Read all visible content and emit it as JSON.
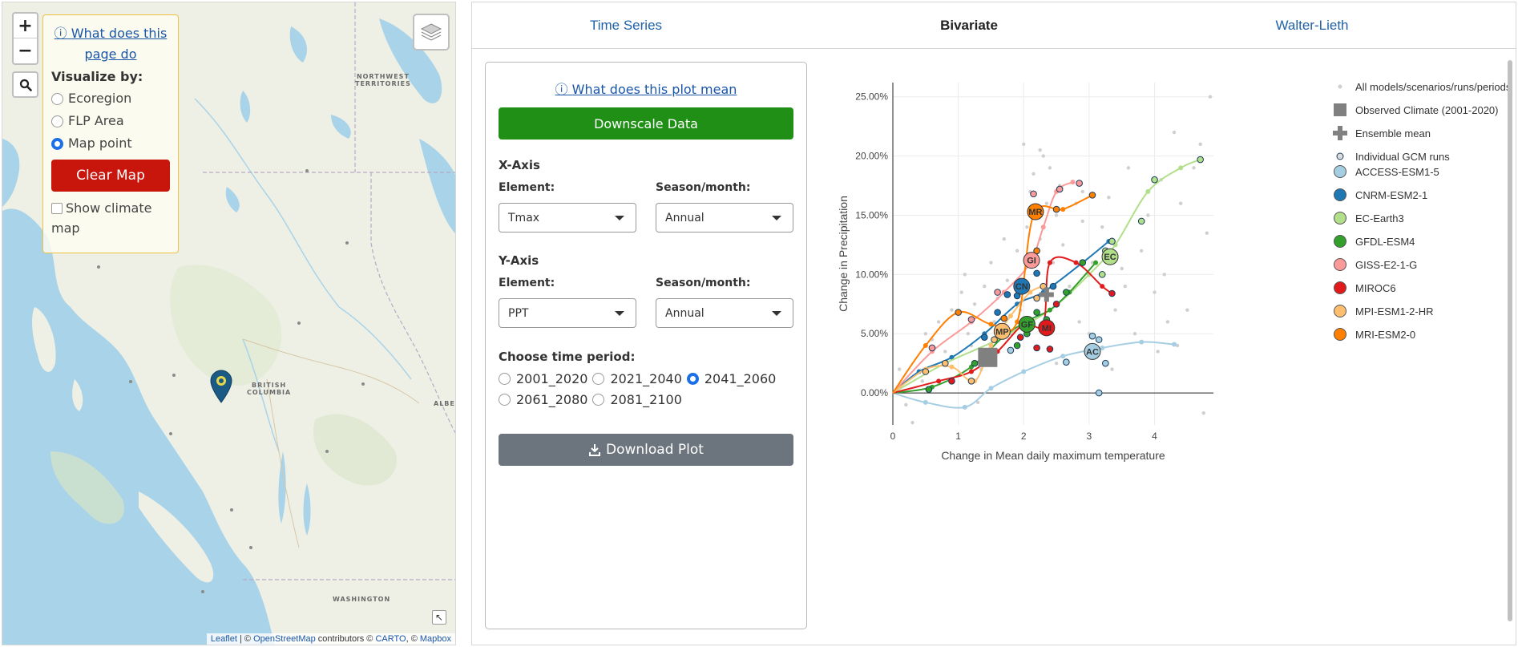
{
  "map": {
    "zoom_in": "+",
    "zoom_out": "−",
    "help_link": "What does this page do",
    "visualize_title": "Visualize by:",
    "options": [
      "Ecoregion",
      "FLP Area",
      "Map point"
    ],
    "selected_option": "Map point",
    "clear_button": "Clear Map",
    "show_climate_label": "Show climate map",
    "labels": {
      "nwt": "NORTHWEST\nTERRITORIES",
      "bc": "BRITISH\nCOLUMBIA",
      "alberta": "ALBERTA",
      "washington": "WASHINGTON"
    },
    "attribution": {
      "leaflet": "Leaflet",
      "sep1": " | © ",
      "osm": "OpenStreetMap",
      "contrib": " contributors © ",
      "carto": "CARTO",
      "sep2": ", © ",
      "mapbox": "Mapbox"
    }
  },
  "tabs": [
    "Time Series",
    "Bivariate",
    "Walter-Lieth"
  ],
  "active_tab": "Bivariate",
  "controls": {
    "plot_help": "What does this plot mean",
    "downscale_button": "Downscale Data",
    "x_axis": {
      "heading": "X-Axis",
      "element_label": "Element:",
      "element_value": "Tmax",
      "season_label": "Season/month:",
      "season_value": "Annual"
    },
    "y_axis": {
      "heading": "Y-Axis",
      "element_label": "Element:",
      "element_value": "PPT",
      "season_label": "Season/month:",
      "season_value": "Annual"
    },
    "period_heading": "Choose time period:",
    "periods": [
      "2001_2020",
      "2021_2040",
      "2041_2060",
      "2061_2080",
      "2081_2100"
    ],
    "selected_period": "2041_2060",
    "download_button": "Download Plot"
  },
  "chart_data": {
    "type": "scatter",
    "xlabel": "Change in Mean daily maximum temperature",
    "ylabel": "Change in Precipitation",
    "xlim": [
      0,
      4.9
    ],
    "ylim": [
      -0.027,
      0.262
    ],
    "xticks": [
      0,
      1,
      2,
      3,
      4
    ],
    "yticks": [
      0,
      0.05,
      0.1,
      0.15,
      0.2,
      0.25
    ],
    "ytick_labels": [
      "0.00%",
      "5.00%",
      "10.00%",
      "15.00%",
      "20.00%",
      "25.00%"
    ],
    "grid": true,
    "legend_position": "right",
    "legend": [
      "All models/scenarios/runs/periods",
      "Observed Climate (2001-2020)",
      "Ensemble mean",
      "Individual GCM runs",
      "ACCESS-ESM1-5",
      "CNRM-ESM2-1",
      "EC-Earth3",
      "GFDL-ESM4",
      "GISS-E2-1-G",
      "MIROC6",
      "MPI-ESM1-2-HR",
      "MRI-ESM2-0"
    ],
    "observed": {
      "x": 1.45,
      "y": 0.03
    },
    "ensemble_mean": {
      "x": 2.35,
      "y": 0.083
    },
    "background_points": [
      [
        0.1,
        0.02
      ],
      [
        0.3,
        -0.025
      ],
      [
        0.45,
        0.01
      ],
      [
        0.6,
        0.045
      ],
      [
        0.7,
        0.06
      ],
      [
        0.8,
        0.035
      ],
      [
        0.9,
        0.07
      ],
      [
        1.05,
        0.085
      ],
      [
        1.1,
        0.1
      ],
      [
        1.2,
        0.04
      ],
      [
        1.25,
        0.075
      ],
      [
        1.35,
        0.02
      ],
      [
        1.4,
        0.09
      ],
      [
        1.5,
        0.11
      ],
      [
        1.55,
        0.06
      ],
      [
        1.6,
        0.08
      ],
      [
        1.7,
        0.13
      ],
      [
        1.75,
        0.095
      ],
      [
        1.8,
        0.05
      ],
      [
        1.9,
        0.12
      ],
      [
        1.95,
        0.07
      ],
      [
        2.05,
        0.14
      ],
      [
        2.1,
        0.17
      ],
      [
        2.15,
        0.185
      ],
      [
        2.2,
        0.1
      ],
      [
        2.25,
        0.13
      ],
      [
        2.3,
        0.2
      ],
      [
        2.35,
        0.16
      ],
      [
        2.4,
        0.19
      ],
      [
        2.45,
        0.11
      ],
      [
        2.5,
        0.15
      ],
      [
        2.55,
        0.175
      ],
      [
        2.6,
        0.125
      ],
      [
        2.7,
        0.09
      ],
      [
        2.8,
        0.16
      ],
      [
        2.85,
        0.06
      ],
      [
        2.9,
        0.145
      ],
      [
        3.0,
        0.05
      ],
      [
        3.05,
        0.11
      ],
      [
        3.1,
        0.03
      ],
      [
        3.2,
        0.14
      ],
      [
        3.3,
        0.165
      ],
      [
        3.35,
        0.02
      ],
      [
        3.4,
        0.07
      ],
      [
        3.5,
        0.105
      ],
      [
        3.6,
        0.19
      ],
      [
        3.7,
        0.05
      ],
      [
        3.8,
        0.12
      ],
      [
        3.9,
        0.15
      ],
      [
        4.0,
        0.085
      ],
      [
        4.05,
        0.035
      ],
      [
        4.1,
        0.18
      ],
      [
        4.2,
        0.06
      ],
      [
        4.3,
        0.22
      ],
      [
        4.35,
        0.04
      ],
      [
        4.4,
        0.16
      ],
      [
        4.5,
        0.07
      ],
      [
        4.6,
        0.19
      ],
      [
        4.7,
        0.21
      ],
      [
        4.75,
        -0.017
      ],
      [
        4.85,
        0.25
      ],
      [
        4.8,
        0.135
      ],
      [
        2.0,
        0.21
      ],
      [
        1.15,
        0.05
      ],
      [
        0.5,
        0.05
      ],
      [
        0.2,
        -0.01
      ],
      [
        1.3,
        -0.008
      ],
      [
        2.5,
        0.025
      ],
      [
        3.55,
        0.09
      ],
      [
        4.15,
        0.1
      ],
      [
        2.25,
        0.205
      ],
      [
        2.9,
        0.17
      ]
    ],
    "series": [
      {
        "name": "ACCESS-ESM1-5",
        "color": "#a6cee3",
        "label": "AC",
        "line": [
          [
            0,
            0
          ],
          [
            0.5,
            -0.008
          ],
          [
            1.1,
            -0.012
          ],
          [
            1.5,
            0.004
          ],
          [
            2.0,
            0.018
          ],
          [
            2.6,
            0.031
          ],
          [
            3.2,
            0.038
          ],
          [
            3.8,
            0.043
          ],
          [
            4.3,
            0.041
          ]
        ],
        "mean": [
          3.05,
          0.035
        ],
        "runs": [
          [
            3.05,
            0.048
          ],
          [
            3.15,
            0.045
          ],
          [
            2.65,
            0.026
          ],
          [
            3.25,
            0.025
          ],
          [
            3.15,
            0.0
          ],
          [
            1.8,
            0.036
          ]
        ]
      },
      {
        "name": "CNRM-ESM2-1",
        "color": "#1f78b4",
        "label": "CN",
        "line": [
          [
            0,
            0
          ],
          [
            0.4,
            0.018
          ],
          [
            0.9,
            0.03
          ],
          [
            1.4,
            0.05
          ],
          [
            1.9,
            0.075
          ],
          [
            2.3,
            0.085
          ],
          [
            2.9,
            0.11
          ],
          [
            3.3,
            0.128
          ]
        ],
        "mean": [
          1.97,
          0.09
        ],
        "runs": [
          [
            1.4,
            0.047
          ],
          [
            1.6,
            0.068
          ],
          [
            1.9,
            0.082
          ],
          [
            2.2,
            0.101
          ],
          [
            2.45,
            0.09
          ],
          [
            3.35,
            0.128
          ],
          [
            1.75,
            0.083
          ]
        ]
      },
      {
        "name": "EC-Earth3",
        "color": "#b2df8a",
        "label": "EC",
        "line": [
          [
            0,
            0
          ],
          [
            0.8,
            0.025
          ],
          [
            1.6,
            0.045
          ],
          [
            2.4,
            0.07
          ],
          [
            3.0,
            0.1
          ],
          [
            3.4,
            0.125
          ],
          [
            3.9,
            0.17
          ],
          [
            4.4,
            0.19
          ],
          [
            4.7,
            0.197
          ]
        ],
        "mean": [
          3.32,
          0.115
        ],
        "runs": [
          [
            3.25,
            0.12
          ],
          [
            3.35,
            0.128
          ],
          [
            3.8,
            0.145
          ],
          [
            4.0,
            0.18
          ],
          [
            4.7,
            0.197
          ],
          [
            3.2,
            0.1
          ]
        ]
      },
      {
        "name": "GFDL-ESM4",
        "color": "#33a02c",
        "label": "GF",
        "line": [
          [
            0,
            0
          ],
          [
            0.6,
            0.005
          ],
          [
            1.2,
            0.022
          ],
          [
            1.7,
            0.048
          ],
          [
            2.1,
            0.062
          ],
          [
            2.4,
            0.07
          ],
          [
            2.7,
            0.085
          ],
          [
            3.1,
            0.11
          ]
        ],
        "mean": [
          2.05,
          0.058
        ],
        "runs": [
          [
            1.25,
            0.025
          ],
          [
            1.9,
            0.04
          ],
          [
            2.2,
            0.068
          ],
          [
            2.35,
            0.062
          ],
          [
            2.65,
            0.085
          ],
          [
            2.9,
            0.11
          ],
          [
            0.55,
            0.003
          ],
          [
            2.05,
            0.05
          ]
        ]
      },
      {
        "name": "GISS-E2-1-G",
        "color": "#fb9a99",
        "label": "GI",
        "line": [
          [
            0,
            0
          ],
          [
            0.6,
            0.035
          ],
          [
            1.2,
            0.06
          ],
          [
            1.7,
            0.085
          ],
          [
            2.1,
            0.11
          ],
          [
            2.3,
            0.14
          ],
          [
            2.5,
            0.17
          ],
          [
            2.75,
            0.178
          ]
        ],
        "mean": [
          2.12,
          0.112
        ],
        "runs": [
          [
            0.6,
            0.038
          ],
          [
            1.2,
            0.062
          ],
          [
            1.6,
            0.085
          ],
          [
            2.15,
            0.168
          ],
          [
            2.55,
            0.172
          ],
          [
            2.85,
            0.177
          ]
        ]
      },
      {
        "name": "MIROC6",
        "color": "#e31a1c",
        "label": "MI",
        "line": [
          [
            0,
            0
          ],
          [
            0.7,
            0.01
          ],
          [
            1.2,
            0.018
          ],
          [
            1.6,
            0.035
          ],
          [
            2.0,
            0.058
          ],
          [
            2.3,
            0.058
          ],
          [
            2.4,
            0.11
          ],
          [
            2.8,
            0.11
          ],
          [
            3.2,
            0.09
          ],
          [
            3.35,
            0.084
          ]
        ],
        "mean": [
          2.35,
          0.055
        ],
        "runs": [
          [
            0.9,
            0.01
          ],
          [
            2.4,
            0.037
          ],
          [
            2.5,
            0.075
          ],
          [
            2.2,
            0.038
          ],
          [
            3.35,
            0.084
          ],
          [
            1.95,
            0.047
          ]
        ]
      },
      {
        "name": "MPI-ESM1-2-HR",
        "color": "#fdbf6f",
        "label": "MP",
        "line": [
          [
            0,
            0
          ],
          [
            0.5,
            0.02
          ],
          [
            0.9,
            0.022
          ],
          [
            1.25,
            0.01
          ],
          [
            1.5,
            0.04
          ],
          [
            1.8,
            0.065
          ],
          [
            2.1,
            0.085
          ],
          [
            2.3,
            0.09
          ]
        ],
        "mean": [
          1.67,
          0.052
        ],
        "runs": [
          [
            0.5,
            0.018
          ],
          [
            0.8,
            0.025
          ],
          [
            1.2,
            0.01
          ],
          [
            1.55,
            0.045
          ],
          [
            2.3,
            0.09
          ],
          [
            2.2,
            0.08
          ]
        ]
      },
      {
        "name": "MRI-ESM2-0",
        "color": "#ff7f00",
        "label": "MR",
        "line": [
          [
            0,
            0
          ],
          [
            0.5,
            0.04
          ],
          [
            1.0,
            0.068
          ],
          [
            1.5,
            0.058
          ],
          [
            1.9,
            0.06
          ],
          [
            2.15,
            0.15
          ],
          [
            2.6,
            0.155
          ],
          [
            3.05,
            0.167
          ]
        ],
        "mean": [
          2.18,
          0.153
        ],
        "runs": [
          [
            1.0,
            0.068
          ],
          [
            2.5,
            0.155
          ],
          [
            3.05,
            0.167
          ],
          [
            1.7,
            0.063
          ],
          [
            2.2,
            0.12
          ]
        ]
      }
    ]
  }
}
